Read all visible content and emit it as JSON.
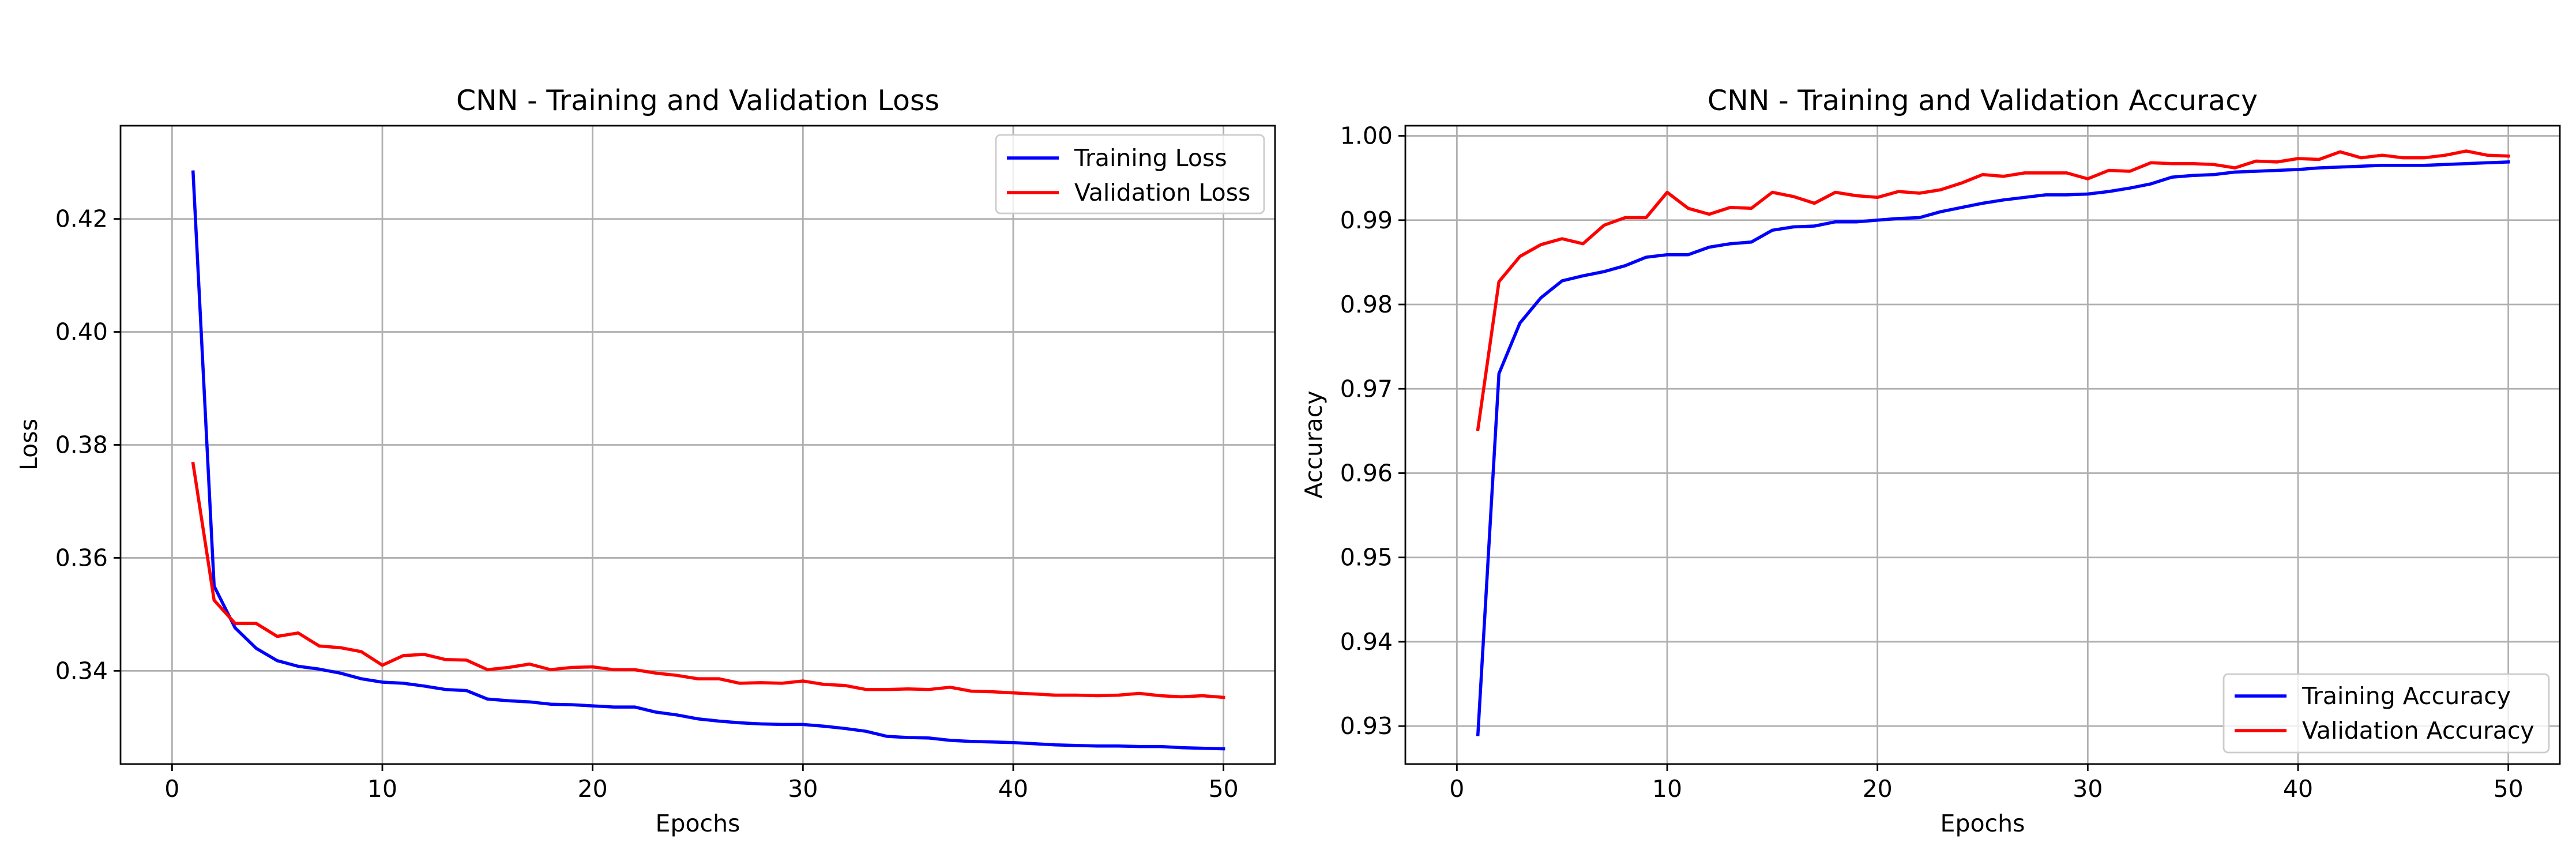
{
  "chart_data": [
    {
      "type": "line",
      "title": "CNN - Training and Validation Loss",
      "xlabel": "Epochs",
      "ylabel": "Loss",
      "xlim": [
        -2.45,
        52.45
      ],
      "ylim": [
        0.3235,
        0.4365
      ],
      "xticks": [
        0,
        10,
        20,
        30,
        40,
        50
      ],
      "yticks": [
        0.34,
        0.36,
        0.38,
        0.4,
        0.42
      ],
      "ytick_labels": [
        "0.34",
        "0.36",
        "0.38",
        "0.40",
        "0.42"
      ],
      "grid": true,
      "legend_position": "upper right",
      "x": [
        1,
        2,
        3,
        4,
        5,
        6,
        7,
        8,
        9,
        10,
        11,
        12,
        13,
        14,
        15,
        16,
        17,
        18,
        19,
        20,
        21,
        22,
        23,
        24,
        25,
        26,
        27,
        28,
        29,
        30,
        31,
        32,
        33,
        34,
        35,
        36,
        37,
        38,
        39,
        40,
        41,
        42,
        43,
        44,
        45,
        46,
        47,
        48,
        49,
        50
      ],
      "series": [
        {
          "name": "Training Loss",
          "color": "#0000ff",
          "values": [
            0.4283,
            0.355,
            0.3476,
            0.344,
            0.3418,
            0.3408,
            0.3403,
            0.3396,
            0.3386,
            0.338,
            0.3378,
            0.3373,
            0.3367,
            0.3365,
            0.335,
            0.3347,
            0.3345,
            0.3341,
            0.334,
            0.3338,
            0.3336,
            0.3336,
            0.3327,
            0.3322,
            0.3315,
            0.3311,
            0.3308,
            0.3306,
            0.3305,
            0.3305,
            0.3302,
            0.3298,
            0.3293,
            0.3284,
            0.3282,
            0.3281,
            0.3277,
            0.3275,
            0.3274,
            0.3273,
            0.3271,
            0.3269,
            0.3268,
            0.3267,
            0.3267,
            0.3266,
            0.3266,
            0.3264,
            0.3263,
            0.3262
          ]
        },
        {
          "name": "Validation Loss",
          "color": "#ff0000",
          "values": [
            0.3767,
            0.3525,
            0.3484,
            0.3484,
            0.3461,
            0.3467,
            0.3444,
            0.3441,
            0.3434,
            0.341,
            0.3427,
            0.3429,
            0.342,
            0.3419,
            0.3402,
            0.3406,
            0.3412,
            0.3402,
            0.3406,
            0.3407,
            0.3402,
            0.3402,
            0.3396,
            0.3392,
            0.3386,
            0.3386,
            0.3378,
            0.3379,
            0.3378,
            0.3382,
            0.3376,
            0.3374,
            0.3367,
            0.3367,
            0.3368,
            0.3367,
            0.3371,
            0.3364,
            0.3363,
            0.3361,
            0.3359,
            0.3357,
            0.3357,
            0.3356,
            0.3357,
            0.336,
            0.3356,
            0.3354,
            0.3356,
            0.3353
          ]
        }
      ]
    },
    {
      "type": "line",
      "title": "CNN - Training and Validation Accuracy",
      "xlabel": "Epochs",
      "ylabel": "Accuracy",
      "xlim": [
        -2.45,
        52.45
      ],
      "ylim": [
        0.9255,
        1.0012
      ],
      "xticks": [
        0,
        10,
        20,
        30,
        40,
        50
      ],
      "yticks": [
        0.93,
        0.94,
        0.95,
        0.96,
        0.97,
        0.98,
        0.99,
        1.0
      ],
      "ytick_labels": [
        "0.93",
        "0.94",
        "0.95",
        "0.96",
        "0.97",
        "0.98",
        "0.99",
        "1.00"
      ],
      "grid": true,
      "legend_position": "lower right",
      "x": [
        1,
        2,
        3,
        4,
        5,
        6,
        7,
        8,
        9,
        10,
        11,
        12,
        13,
        14,
        15,
        16,
        17,
        18,
        19,
        20,
        21,
        22,
        23,
        24,
        25,
        26,
        27,
        28,
        29,
        30,
        31,
        32,
        33,
        34,
        35,
        36,
        37,
        38,
        39,
        40,
        41,
        42,
        43,
        44,
        45,
        46,
        47,
        48,
        49,
        50
      ],
      "series": [
        {
          "name": "Training Accuracy",
          "color": "#0000ff",
          "values": [
            0.929,
            0.9718,
            0.9778,
            0.9808,
            0.9828,
            0.9834,
            0.9839,
            0.9846,
            0.9856,
            0.9859,
            0.9859,
            0.9868,
            0.9872,
            0.9874,
            0.9888,
            0.9892,
            0.9893,
            0.9898,
            0.9898,
            0.99,
            0.9902,
            0.9903,
            0.991,
            0.9915,
            0.992,
            0.9924,
            0.9927,
            0.993,
            0.993,
            0.9931,
            0.9934,
            0.9938,
            0.9943,
            0.9951,
            0.9953,
            0.9954,
            0.9957,
            0.9958,
            0.9959,
            0.996,
            0.9962,
            0.9963,
            0.9964,
            0.9965,
            0.9965,
            0.9965,
            0.9966,
            0.9967,
            0.9968,
            0.9969
          ]
        },
        {
          "name": "Validation Accuracy",
          "color": "#ff0000",
          "values": [
            0.9652,
            0.9827,
            0.9857,
            0.9871,
            0.9878,
            0.9872,
            0.9894,
            0.9903,
            0.9903,
            0.9933,
            0.9914,
            0.9907,
            0.9915,
            0.9914,
            0.9933,
            0.9928,
            0.992,
            0.9933,
            0.9929,
            0.9927,
            0.9934,
            0.9932,
            0.9936,
            0.9944,
            0.9954,
            0.9952,
            0.9956,
            0.9956,
            0.9956,
            0.9949,
            0.9959,
            0.9958,
            0.9968,
            0.9967,
            0.9967,
            0.9966,
            0.9962,
            0.997,
            0.9969,
            0.9973,
            0.9972,
            0.9981,
            0.9974,
            0.9977,
            0.9974,
            0.9974,
            0.9977,
            0.9982,
            0.9977,
            0.9976
          ]
        }
      ]
    }
  ]
}
